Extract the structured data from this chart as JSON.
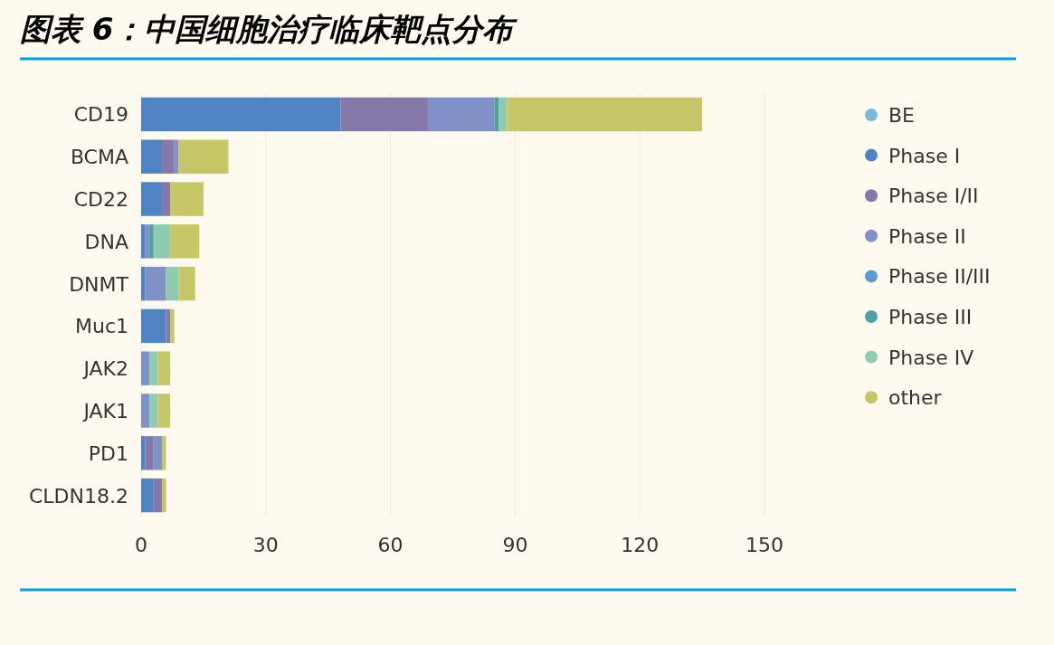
{
  "chart_data": {
    "type": "bar",
    "orientation": "horizontal",
    "stacked": true,
    "title": "图表 6：中国细胞治疗临床靶点分布",
    "categories": [
      "CD19",
      "BCMA",
      "CD22",
      "DNA",
      "DNMT",
      "Muc1",
      "JAK2",
      "JAK1",
      "PD1",
      "CLDN18.2"
    ],
    "series": [
      {
        "name": "BE",
        "color": "#7bb8d6",
        "values": [
          0,
          0,
          0,
          0,
          0,
          0,
          0,
          0,
          0,
          0
        ]
      },
      {
        "name": "Phase I",
        "color": "#5083c4",
        "values": [
          48,
          5,
          5,
          1,
          1,
          6,
          0,
          0,
          1,
          3
        ]
      },
      {
        "name": "Phase I/II",
        "color": "#8679aa",
        "values": [
          21,
          3,
          2,
          0,
          0,
          1,
          0,
          0,
          2,
          2
        ]
      },
      {
        "name": "Phase II",
        "color": "#8190c6",
        "values": [
          16,
          1,
          0,
          1,
          5,
          0,
          2,
          2,
          2,
          0
        ]
      },
      {
        "name": "Phase II/III",
        "color": "#5b9bd5",
        "values": [
          0,
          0,
          0,
          0,
          0,
          0,
          0,
          0,
          0,
          0
        ]
      },
      {
        "name": "Phase III",
        "color": "#4f9ea0",
        "values": [
          1,
          0,
          0,
          1,
          0,
          0,
          0,
          0,
          0,
          0
        ]
      },
      {
        "name": "Phase IV",
        "color": "#8fcbb0",
        "values": [
          2,
          0,
          0,
          4,
          3,
          0,
          2,
          2,
          0,
          0
        ]
      },
      {
        "name": "other",
        "color": "#c5c766",
        "values": [
          47,
          12,
          8,
          7,
          4,
          1,
          3,
          3,
          1,
          1
        ]
      }
    ],
    "xlim": [
      0,
      150
    ],
    "xticks": [
      0,
      30,
      60,
      90,
      120,
      150
    ],
    "grid": "x",
    "legend": "right"
  }
}
